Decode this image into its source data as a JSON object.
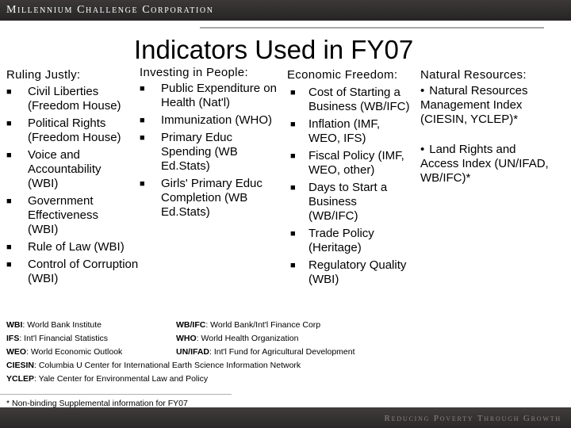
{
  "header": {
    "org_name": "Millennium Challenge Corporation"
  },
  "slide": {
    "title": "Indicators Used in FY07"
  },
  "ruling_justly": {
    "heading": "Ruling Justly:",
    "items": [
      "Civil Liberties (Freedom House)",
      "Political Rights (Freedom House)",
      "Voice and Accountability (WBI)",
      "Government Effectiveness (WBI)",
      "Rule of Law (WBI)",
      "Control of Corruption (WBI)"
    ]
  },
  "investing_in_people": {
    "heading": "Investing in People:",
    "items": [
      "Public Expenditure on Health (Nat'l)",
      "Immunization (WHO)",
      "Primary Educ Spending (WB Ed.Stats)",
      "Girls' Primary Educ Completion (WB Ed.Stats)"
    ]
  },
  "economic_freedom": {
    "heading": "Economic Freedom:",
    "items": [
      "Cost of Starting a Business (WB/IFC)",
      "Inflation (IMF, WEO, IFS)",
      "Fiscal Policy (IMF, WEO, other)",
      "Days to Start a Business (WB/IFC)",
      "Trade Policy (Heritage)",
      "Regulatory Quality (WBI)"
    ]
  },
  "natural_resources": {
    "heading": "Natural Resources:",
    "items": [
      "Natural Resources Management Index (CIESIN, YCLEP)*",
      "Land Rights and Access Index (UN/IFAD, WB/IFC)*"
    ]
  },
  "abbreviations": [
    {
      "abbr": "WBI",
      "full": ": World Bank Institute"
    },
    {
      "abbr": "IFS",
      "full": ": Int'l Financial Statistics"
    },
    {
      "abbr": "WEO",
      "full": ": World Economic Outlook"
    },
    {
      "abbr": "CIESIN",
      "full": ": Columbia U Center for International Earth Science Information Network"
    },
    {
      "abbr": "YCLEP",
      "full": ": Yale Center for Environmental Law and Policy"
    },
    {
      "abbr": "WB/IFC",
      "full": ": World Bank/Int'l Finance Corp"
    },
    {
      "abbr": "WHO",
      "full": ": World Health Organization"
    },
    {
      "abbr": "UN/IFAD",
      "full": ": Int'l Fund for Agricultural Development"
    }
  ],
  "footnote": "* Non-binding Supplemental information for FY07",
  "footer": {
    "tagline": "Reducing Poverty Through Growth"
  }
}
